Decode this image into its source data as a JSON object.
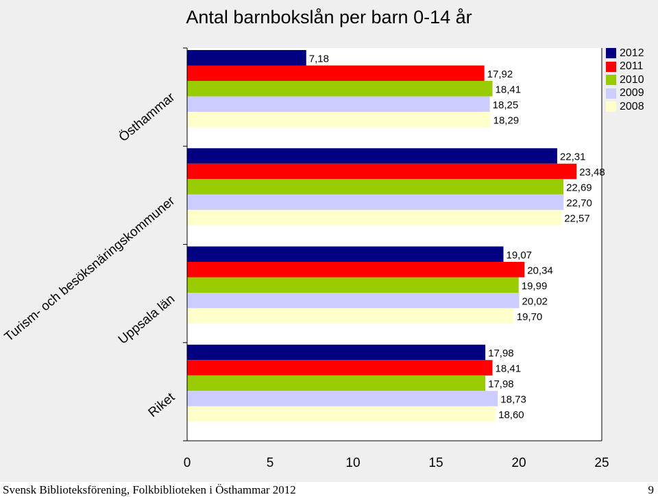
{
  "chart_data": {
    "type": "bar",
    "orientation": "horizontal",
    "title": "Antal barnbokslån per barn 0-14 år",
    "categories": [
      "Östhammar",
      "Turism- och besöksnäringskommuner",
      "Uppsala län",
      "Riket"
    ],
    "series": [
      {
        "name": "2012",
        "color": "#000080",
        "values": [
          7.18,
          22.31,
          19.07,
          17.98
        ],
        "labels": [
          "7,18",
          "22,31",
          "19,07",
          "17,98"
        ]
      },
      {
        "name": "2011",
        "color": "#ff0000",
        "values": [
          17.92,
          23.48,
          20.34,
          18.41
        ],
        "labels": [
          "17,92",
          "23,48",
          "20,34",
          "18,41"
        ]
      },
      {
        "name": "2010",
        "color": "#99cc00",
        "values": [
          18.41,
          22.69,
          19.99,
          17.98
        ],
        "labels": [
          "18,41",
          "22,69",
          "19,99",
          "17,98"
        ]
      },
      {
        "name": "2009",
        "color": "#ccccff",
        "values": [
          18.25,
          22.7,
          20.02,
          18.73
        ],
        "labels": [
          "18,25",
          "22,70",
          "20,02",
          "18,73"
        ]
      },
      {
        "name": "2008",
        "color": "#ffffcc",
        "values": [
          18.29,
          22.57,
          19.7,
          18.6
        ],
        "labels": [
          "18,29",
          "22,57",
          "19,70",
          "18,60"
        ]
      }
    ],
    "xlim": [
      0,
      25
    ],
    "xticks": [
      "0",
      "5",
      "10",
      "15",
      "20",
      "25"
    ],
    "grid": false,
    "legend_position": "top-right"
  },
  "footer": {
    "text": "Svensk Biblioteksförening, Folkbiblioteken i Östhammar 2012",
    "page_number": "9"
  }
}
